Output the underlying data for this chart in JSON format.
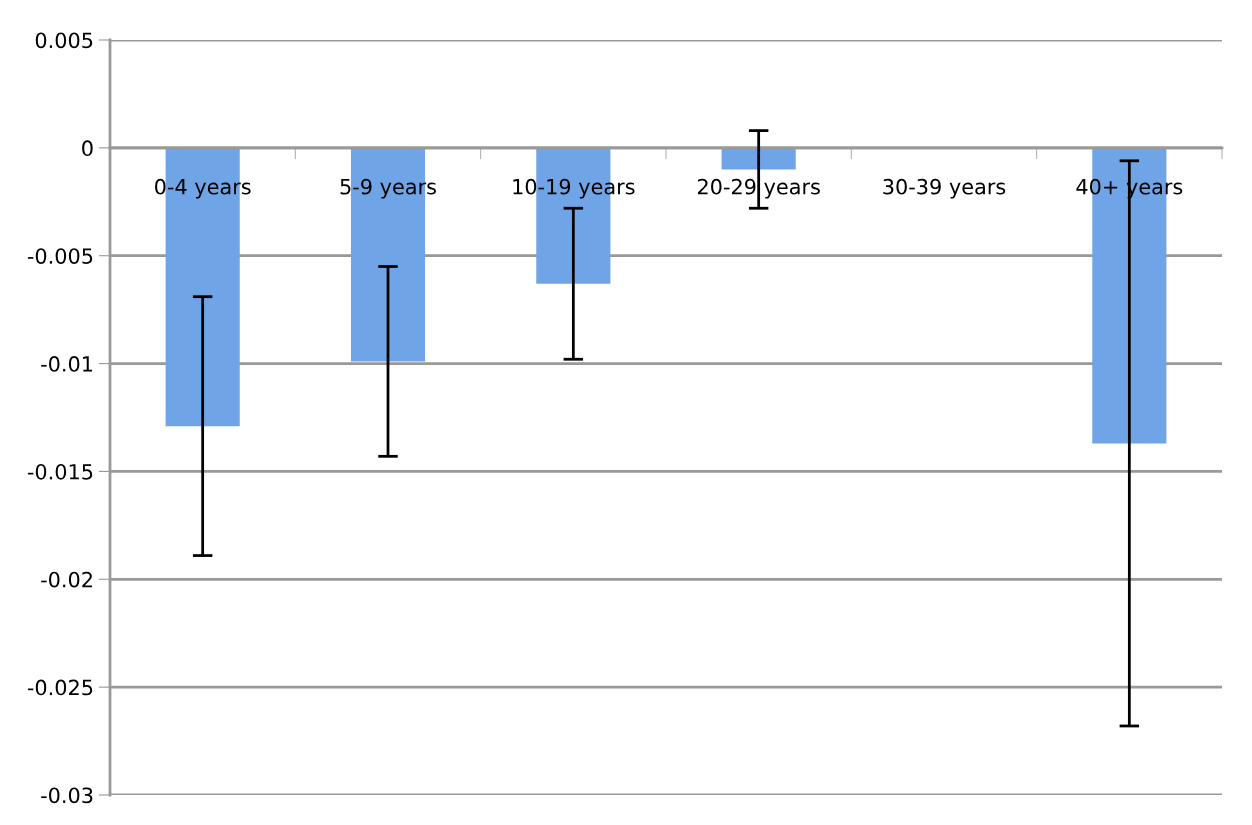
{
  "chart_data": {
    "type": "bar",
    "categories": [
      "0-4 years",
      "5-9 years",
      "10-19 years",
      "20-29 years",
      "30-39 years",
      "40+ years"
    ],
    "values": [
      -0.0129,
      -0.0099,
      -0.0063,
      -0.001,
      null,
      -0.0137
    ],
    "errors": [
      0.006,
      0.0044,
      0.0035,
      0.0018,
      null,
      0.0131
    ],
    "color": "#6fa5e6",
    "ylim": [
      -0.03,
      0.005
    ],
    "yticks": [
      0.005,
      0,
      -0.005,
      -0.01,
      -0.015,
      -0.02,
      -0.025,
      -0.03
    ],
    "grid": "y"
  }
}
